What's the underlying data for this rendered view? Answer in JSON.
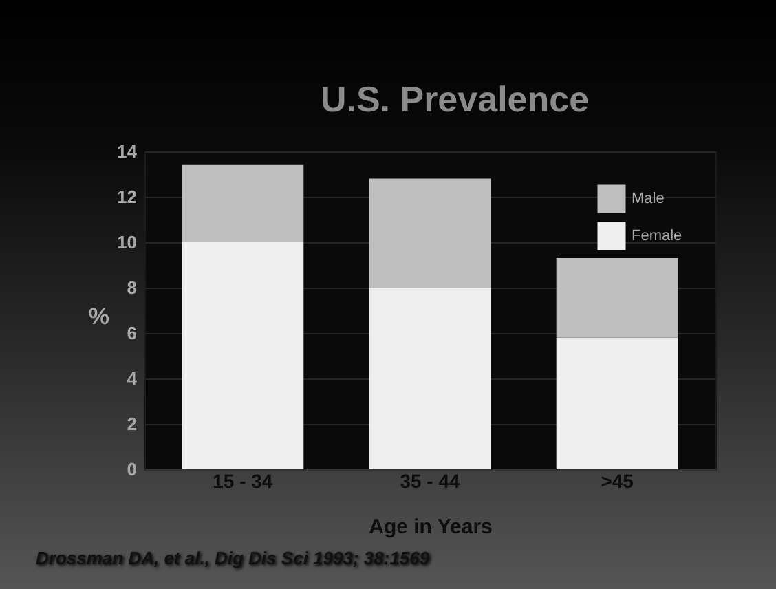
{
  "chart_data": {
    "type": "bar",
    "title": "U.S. Prevalence",
    "xlabel": "Age in Years",
    "ylabel": "%",
    "categories": [
      "15 - 34",
      "35 - 44",
      ">45"
    ],
    "series": [
      {
        "name": "Female",
        "color": "#efefef",
        "values": [
          10,
          8,
          5.8
        ]
      },
      {
        "name": "Male",
        "color": "#bfbfbf",
        "values": [
          3.4,
          4.8,
          3.5
        ]
      }
    ],
    "stacked": true,
    "ylim": [
      0,
      14
    ],
    "yticks": [
      0,
      2,
      4,
      6,
      8,
      10,
      12,
      14
    ],
    "grid": "y",
    "legend": "top right",
    "annotations": [
      "Drossman DA, et al., Dig Dis Sci 1993; 38:1569"
    ]
  }
}
